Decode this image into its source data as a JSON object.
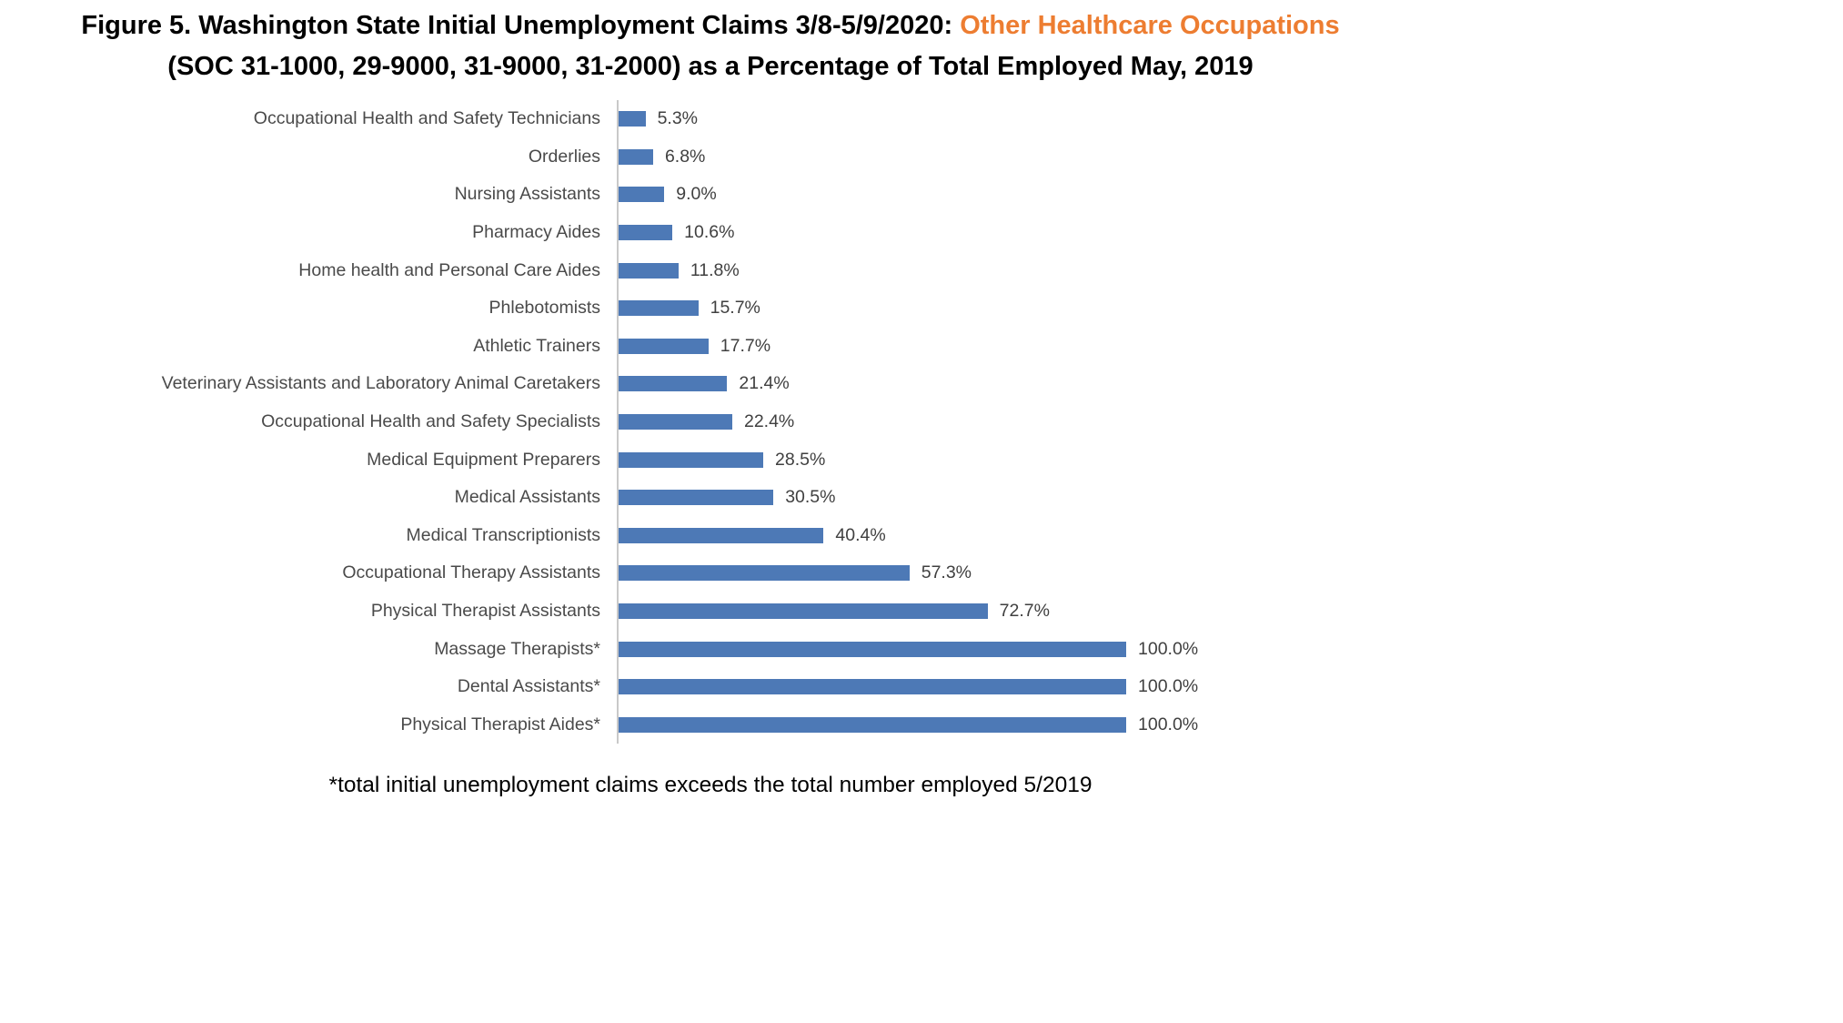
{
  "title": {
    "prefix": "Figure 5. Washington State Initial Unemployment Claims 3/8-5/9/2020: ",
    "highlight": "Other Healthcare Occupations",
    "line2": "(SOC 31-1000, 29-9000, 31-9000, 31-2000) as a Percentage of Total Employed May, 2019"
  },
  "footnote": "*total initial unemployment claims exceeds the total number employed 5/2019",
  "colors": {
    "title_highlight": "#ED7D31",
    "bar": "#4D79B6",
    "axis_line": "#C9C9C9"
  },
  "chart_data": {
    "type": "bar",
    "orientation": "horizontal",
    "title": "Figure 5. Washington State Initial Unemployment Claims 3/8-5/9/2020: Other Healthcare Occupations (SOC 31-1000, 29-9000, 31-9000, 31-2000) as a Percentage of Total Employed May, 2019",
    "xlabel": "",
    "ylabel": "",
    "xlim": [
      0,
      100
    ],
    "grid": false,
    "legend": false,
    "bar_color": "#4D79B6",
    "categories": [
      "Occupational Health and Safety Technicians",
      "Orderlies",
      "Nursing Assistants",
      "Pharmacy Aides",
      "Home health and Personal Care Aides",
      "Phlebotomists",
      "Athletic Trainers",
      "Veterinary Assistants and Laboratory Animal Caretakers",
      "Occupational Health and Safety Specialists",
      "Medical Equipment Preparers",
      "Medical Assistants",
      "Medical Transcriptionists",
      "Occupational Therapy Assistants",
      "Physical Therapist Assistants",
      "Massage Therapists*",
      "Dental Assistants*",
      "Physical Therapist Aides*"
    ],
    "values": [
      5.3,
      6.8,
      9.0,
      10.6,
      11.8,
      15.7,
      17.7,
      21.4,
      22.4,
      28.5,
      30.5,
      40.4,
      57.3,
      72.7,
      100.0,
      100.0,
      100.0
    ],
    "value_labels": [
      "5.3%",
      "6.8%",
      "9.0%",
      "10.6%",
      "11.8%",
      "15.7%",
      "17.7%",
      "21.4%",
      "22.4%",
      "28.5%",
      "30.5%",
      "40.4%",
      "57.3%",
      "72.7%",
      "100.0%",
      "100.0%",
      "100.0%"
    ]
  }
}
